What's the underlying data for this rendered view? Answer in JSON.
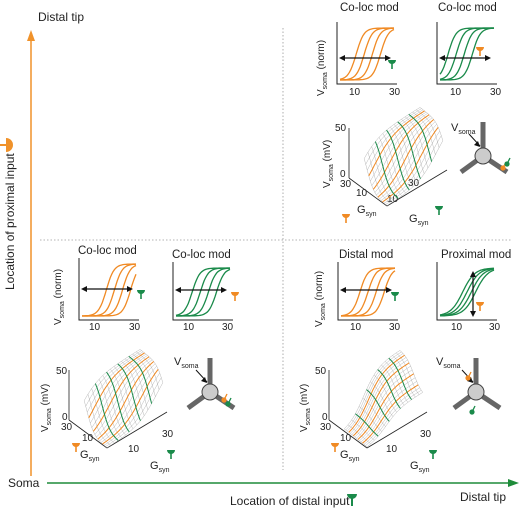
{
  "axes": {
    "y_top_label": "Distal tip",
    "y_label": "Location of proximal input",
    "x_left_label": "Soma",
    "x_label": "Location of distal input",
    "x_right_label": "Distal tip"
  },
  "panels": {
    "top_right": {
      "title_left": "Co-loc mod",
      "title_right": "Co-loc mod",
      "ylabel_2d": "V",
      "ylabel_2d_sub": "soma",
      "ylabel_2d_tail": " (norm)",
      "xticks": [
        "10",
        "30"
      ],
      "ylabel_3d": "V",
      "ylabel_3d_sub": "soma",
      "ylabel_3d_tail": " (mV)",
      "zticks": [
        "50",
        "0"
      ],
      "g_ticks_left": [
        "30",
        "10"
      ],
      "g_ticks_right": [
        "10",
        "30"
      ],
      "g_label": "G",
      "g_label_sub": "syn",
      "vsoma_label": "V",
      "vsoma_sub": "soma"
    },
    "mid_left": {
      "title_left": "Co-loc mod",
      "title_right": "Co-loc mod",
      "ylabel_2d": "V",
      "ylabel_2d_sub": "soma",
      "ylabel_2d_tail": " (norm)",
      "xticks": [
        "10",
        "30"
      ],
      "ylabel_3d": "V",
      "ylabel_3d_sub": "soma",
      "ylabel_3d_tail": " (mV)",
      "zticks": [
        "50",
        "0"
      ],
      "g_ticks_left": [
        "30",
        "10"
      ],
      "g_ticks_right": [
        "10",
        "30"
      ],
      "g_label": "G",
      "g_label_sub": "syn",
      "vsoma_label": "V",
      "vsoma_sub": "soma"
    },
    "mid_right": {
      "title_left": "Distal mod",
      "title_right": "Proximal mod",
      "ylabel_2d": "V",
      "ylabel_2d_sub": "soma",
      "ylabel_2d_tail": " (norm)",
      "xticks": [
        "10",
        "30"
      ],
      "ylabel_3d": "V",
      "ylabel_3d_sub": "soma",
      "ylabel_3d_tail": " (mV)",
      "zticks": [
        "50",
        "0"
      ],
      "g_ticks_left": [
        "30",
        "10"
      ],
      "g_ticks_right": [
        "10",
        "30"
      ],
      "g_label": "G",
      "g_label_sub": "syn",
      "vsoma_label": "V",
      "vsoma_sub": "soma"
    }
  },
  "colors": {
    "orange": "#f08a24",
    "green": "#1a8a4a",
    "axis_green": "#1e8c3a",
    "axis_orange": "#f0922a",
    "grid": "#9a9a9a",
    "divider": "#9a9a9a"
  }
}
